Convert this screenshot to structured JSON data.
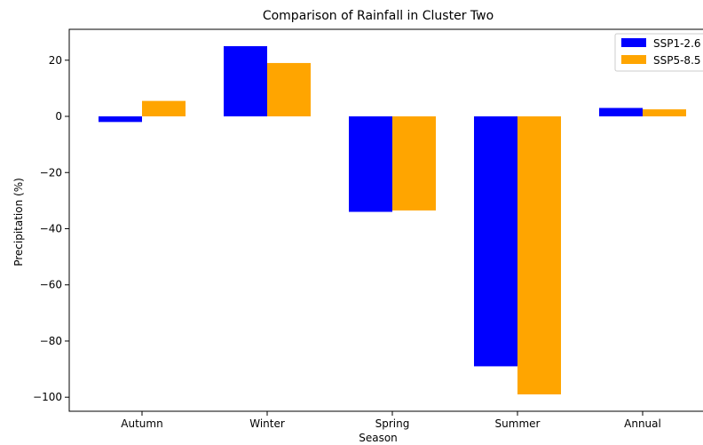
{
  "chart_data": {
    "type": "bar",
    "title": "Comparison of Rainfall in Cluster Two",
    "xlabel": "Season",
    "ylabel": "Precipitation (%)",
    "categories": [
      "Autumn",
      "Winter",
      "Spring",
      "Summer",
      "Annual"
    ],
    "series": [
      {
        "name": "SSP1-2.6",
        "color": "#0000ff",
        "values": [
          -2,
          25,
          -34,
          -89,
          3
        ]
      },
      {
        "name": "SSP5-8.5",
        "color": "#ffa500",
        "values": [
          5.5,
          19,
          -33.5,
          -99,
          2.5
        ]
      }
    ],
    "ylim": [
      -105,
      31
    ],
    "yticks": [
      20,
      0,
      -20,
      -40,
      -60,
      -80,
      -100
    ],
    "ytick_labels": [
      "20",
      "0",
      "−20",
      "−40",
      "−60",
      "−80",
      "−100"
    ],
    "legend_position": "top-right",
    "grid": false
  }
}
